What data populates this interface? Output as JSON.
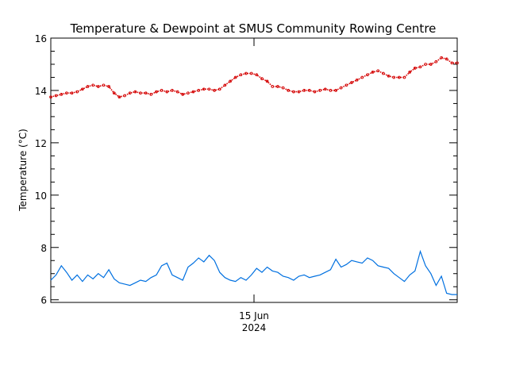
{
  "chart_data": {
    "type": "line",
    "title": "Temperature & Dewpoint at SMUS Community Rowing Centre",
    "ylabel": "Temperature (°C)",
    "xlabel": "",
    "ylim": [
      5.9,
      16
    ],
    "yticks": [
      6,
      8,
      10,
      12,
      14,
      16
    ],
    "x_tick_label": {
      "line1": "15 Jun",
      "line2": "2024"
    },
    "x_tick_position": 0.5,
    "grid": false,
    "legend": "none",
    "colors": {
      "temperature": "#d40000",
      "dewpoint": "#0070e0",
      "axes": "#000000"
    },
    "series": [
      {
        "key": "temperature",
        "style": "dotted-markers",
        "values": [
          13.75,
          13.8,
          13.85,
          13.9,
          13.9,
          13.95,
          14.05,
          14.15,
          14.2,
          14.15,
          14.2,
          14.15,
          13.9,
          13.75,
          13.8,
          13.9,
          13.95,
          13.9,
          13.9,
          13.85,
          13.95,
          14.0,
          13.95,
          14.0,
          13.95,
          13.85,
          13.9,
          13.95,
          14.0,
          14.05,
          14.05,
          14.0,
          14.05,
          14.2,
          14.35,
          14.5,
          14.6,
          14.65,
          14.65,
          14.6,
          14.45,
          14.35,
          14.15,
          14.15,
          14.1,
          14.0,
          13.95,
          13.95,
          14.0,
          14.0,
          13.95,
          14.0,
          14.05,
          14.0,
          14.0,
          14.1,
          14.2,
          14.3,
          14.4,
          14.5,
          14.6,
          14.7,
          14.75,
          14.65,
          14.55,
          14.5,
          14.5,
          14.5,
          14.7,
          14.85,
          14.9,
          15.0,
          15.0,
          15.1,
          15.25,
          15.2,
          15.05,
          15.05
        ]
      },
      {
        "key": "dewpoint",
        "style": "line",
        "values": [
          6.75,
          6.95,
          7.3,
          7.05,
          6.75,
          6.95,
          6.7,
          6.95,
          6.8,
          7.0,
          6.85,
          7.15,
          6.8,
          6.65,
          6.6,
          6.55,
          6.65,
          6.75,
          6.7,
          6.85,
          6.95,
          7.3,
          7.4,
          6.95,
          6.85,
          6.75,
          7.25,
          7.4,
          7.6,
          7.45,
          7.7,
          7.5,
          7.05,
          6.85,
          6.75,
          6.7,
          6.85,
          6.75,
          6.95,
          7.2,
          7.05,
          7.25,
          7.1,
          7.05,
          6.9,
          6.85,
          6.75,
          6.9,
          6.95,
          6.85,
          6.9,
          6.95,
          7.05,
          7.15,
          7.55,
          7.25,
          7.35,
          7.5,
          7.45,
          7.4,
          7.6,
          7.5,
          7.3,
          7.25,
          7.2,
          7.0,
          6.85,
          6.7,
          6.95,
          7.1,
          7.85,
          7.3,
          7.0,
          6.55,
          6.9,
          6.25,
          6.2,
          6.2
        ]
      }
    ]
  }
}
